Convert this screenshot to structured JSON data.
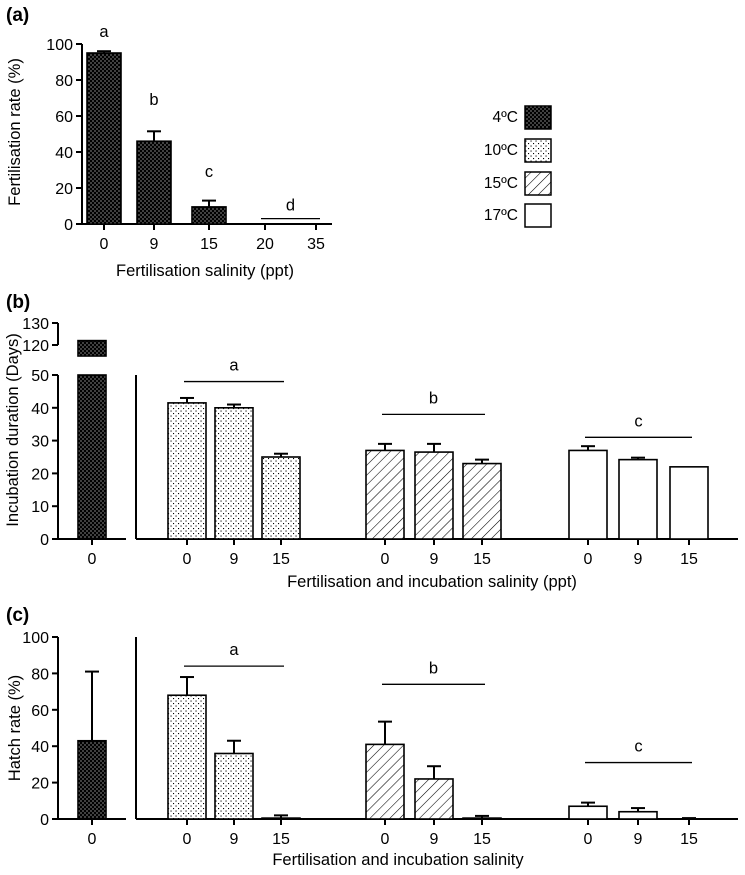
{
  "legend": {
    "entries": [
      {
        "label": "4ºC",
        "pattern": "dense"
      },
      {
        "label": "10ºC",
        "pattern": "dots"
      },
      {
        "label": "15ºC",
        "pattern": "hatch"
      },
      {
        "label": "17ºC",
        "pattern": "none"
      }
    ]
  },
  "chart_data": [
    {
      "panel": "(a)",
      "type": "bar",
      "xlabel": "Fertilisation salinity (ppt)",
      "ylabel": "Fertilisation rate (%)",
      "ylim": [
        0,
        100
      ],
      "yticks": [
        0,
        20,
        40,
        60,
        80,
        100
      ],
      "categories": [
        "0",
        "9",
        "15",
        "20",
        "35"
      ],
      "series": [
        {
          "temperature": "4ºC",
          "pattern": "dense",
          "values": [
            95,
            46,
            9.5,
            0,
            0
          ],
          "errors": [
            1,
            5.5,
            3.5,
            0,
            0
          ]
        }
      ],
      "annotations": [
        {
          "text": "a",
          "category": "0",
          "y": 104
        },
        {
          "text": "b",
          "category": "9",
          "y": 66
        },
        {
          "text": "c",
          "category": "15",
          "y": 26
        },
        {
          "text": "d",
          "from": "20",
          "to": "35",
          "y": 3
        }
      ]
    },
    {
      "panel": "(b)",
      "type": "bar",
      "xlabel": "Fertilisation and incubation salinity (ppt)",
      "ylabel": "Incubation duration (Days)",
      "ylim": [
        0,
        50
      ],
      "yticks": [
        0,
        10,
        20,
        30,
        40,
        50
      ],
      "ylim_upper": [
        115,
        130
      ],
      "yticks_upper": [
        120,
        130
      ],
      "axis_break": true,
      "groups": [
        {
          "temperature": "4ºC",
          "pattern": "dense",
          "categories": [
            "0"
          ],
          "values": [
            122
          ],
          "errors": [
            0
          ]
        },
        {
          "temperature": "10ºC",
          "pattern": "dots",
          "categories": [
            "0",
            "9",
            "15"
          ],
          "values": [
            41.5,
            40,
            25
          ],
          "errors": [
            1.5,
            1,
            1
          ]
        },
        {
          "temperature": "15ºC",
          "pattern": "hatch",
          "categories": [
            "0",
            "9",
            "15"
          ],
          "values": [
            27,
            26.5,
            23
          ],
          "errors": [
            2,
            2.5,
            1.2
          ]
        },
        {
          "temperature": "17ºC",
          "pattern": "none",
          "categories": [
            "0",
            "9",
            "15"
          ],
          "values": [
            27,
            24.2,
            22
          ],
          "errors": [
            1.3,
            0.6,
            0
          ]
        }
      ],
      "annotations": [
        {
          "text": "a",
          "group": 1,
          "y": 48
        },
        {
          "text": "b",
          "group": 2,
          "y": 38
        },
        {
          "text": "c",
          "group": 3,
          "y": 31
        }
      ]
    },
    {
      "panel": "(c)",
      "type": "bar",
      "xlabel": "Fertilisation and incubation salinity",
      "ylabel": "Hatch rate (%)",
      "ylim": [
        0,
        100
      ],
      "yticks": [
        0,
        20,
        40,
        60,
        80,
        100
      ],
      "groups": [
        {
          "temperature": "4ºC",
          "pattern": "dense",
          "categories": [
            "0"
          ],
          "values": [
            43
          ],
          "errors": [
            38
          ]
        },
        {
          "temperature": "10ºC",
          "pattern": "dots",
          "categories": [
            "0",
            "9",
            "15"
          ],
          "values": [
            68,
            36,
            0.5
          ],
          "errors": [
            10,
            7,
            1.5
          ]
        },
        {
          "temperature": "15ºC",
          "pattern": "hatch",
          "categories": [
            "0",
            "9",
            "15"
          ],
          "values": [
            41,
            22,
            0.5
          ],
          "errors": [
            12.5,
            7,
            1.2
          ]
        },
        {
          "temperature": "17ºC",
          "pattern": "none",
          "categories": [
            "0",
            "9",
            "15"
          ],
          "values": [
            7,
            4,
            0
          ],
          "errors": [
            2,
            2,
            0.5
          ]
        }
      ],
      "annotations": [
        {
          "text": "a",
          "group": 1,
          "y": 84
        },
        {
          "text": "b",
          "group": 2,
          "y": 74
        },
        {
          "text": "c",
          "group": 3,
          "y": 31
        }
      ]
    }
  ]
}
